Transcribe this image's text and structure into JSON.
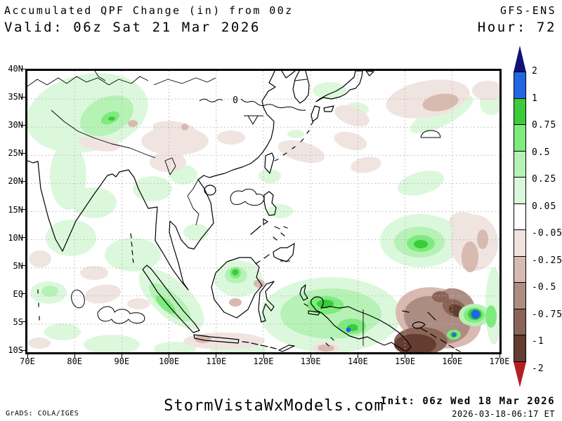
{
  "header": {
    "title": "Accumulated QPF Change (in) from 00z",
    "model": "GFS-ENS",
    "valid": "Valid: 06z Sat 21 Mar 2026",
    "hour": "Hour: 72"
  },
  "map": {
    "lon_ticks": [
      "70E",
      "80E",
      "90E",
      "100E",
      "110E",
      "120E",
      "130E",
      "140E",
      "150E",
      "160E",
      "170E"
    ],
    "lat_ticks": [
      "40N",
      "35N",
      "30N",
      "25N",
      "20N",
      "15N",
      "10N",
      "5N",
      "EQ",
      "5S",
      "10S"
    ],
    "contour_label": "0"
  },
  "colorbar": {
    "tick_labels": [
      "2",
      "1",
      "0.75",
      "0.5",
      "0.25",
      "0.05",
      "-0.05",
      "-0.25",
      "-0.5",
      "-0.75",
      "-1",
      "-2"
    ],
    "segment_colors": [
      "#2366e3",
      "#3bcb3b",
      "#7dec7d",
      "#b6f2b6",
      "#dcf8dc",
      "#ffffff",
      "#f0e4e0",
      "#d8bab0",
      "#ad8d82",
      "#8a6557",
      "#653c30"
    ],
    "above_color": "#11117a",
    "below_color": "#b51f24"
  },
  "footer": {
    "credit": "GrADS: COLA/IGES",
    "site": "StormVistaWxModels.com",
    "init": "Init: 06z Wed 18 Mar 2026",
    "generated": "2026-03-18-06:17 ET"
  }
}
